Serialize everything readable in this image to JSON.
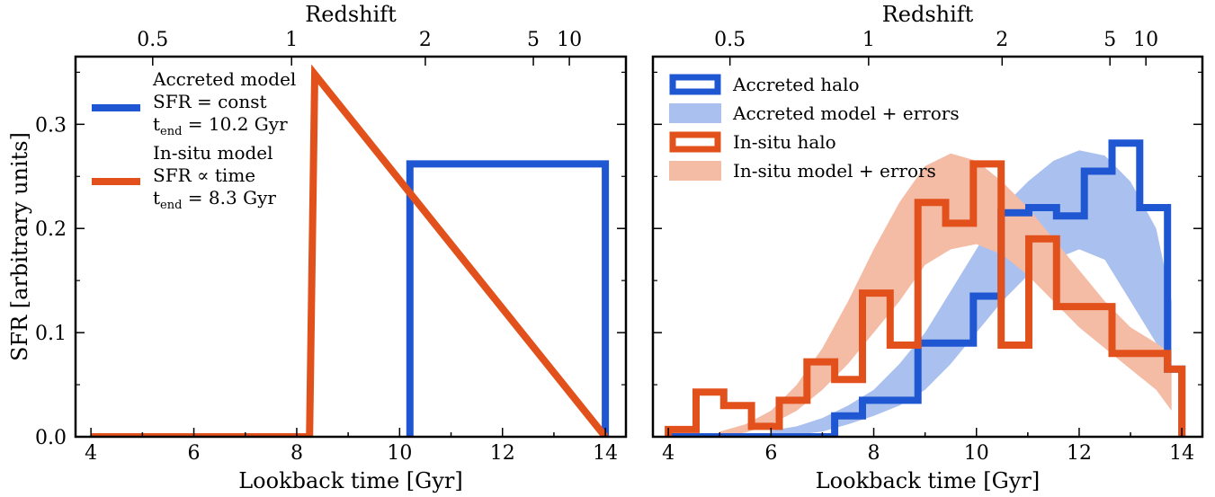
{
  "chart_data": [
    {
      "type": "line",
      "xlabel": "Lookback time [Gyr]",
      "ylabel": "SFR [arbitrary units]",
      "top_axis_label": "Redshift",
      "xlim": [
        3.7,
        14.4
      ],
      "ylim": [
        0.0,
        0.365
      ],
      "x_ticks": [
        4,
        6,
        8,
        10,
        12,
        14
      ],
      "y_ticks": [
        0.0,
        0.1,
        0.2,
        0.3
      ],
      "redshift_ticks": [
        {
          "label": "0.5",
          "t": 5.2
        },
        {
          "label": "1",
          "t": 7.9
        },
        {
          "label": "2",
          "t": 10.5
        },
        {
          "label": "5",
          "t": 12.6
        },
        {
          "label": "10",
          "t": 13.3
        }
      ],
      "legend_position": "top-left",
      "legend": [
        {
          "lines": [
            "Accreted model",
            "SFR = const"
          ],
          "tend_value": "10.2 Gyr",
          "color": "#1f56d2"
        },
        {
          "lines": [
            "In-situ model",
            "SFR ∝ time"
          ],
          "tend_value": "8.3 Gyr",
          "color": "#e2511b"
        }
      ],
      "series": [
        {
          "name": "Accreted model",
          "color": "#1f56d2",
          "x": [
            10.2,
            10.2,
            14.0,
            14.0
          ],
          "y": [
            0.0,
            0.262,
            0.262,
            0.0
          ]
        },
        {
          "name": "In-situ model",
          "color": "#e2511b",
          "x": [
            4.0,
            8.25,
            8.35,
            14.0
          ],
          "y": [
            0.0,
            0.0,
            0.348,
            0.0
          ]
        }
      ]
    },
    {
      "type": "step",
      "xlabel": "Lookback time [Gyr]",
      "top_axis_label": "Redshift",
      "xlim": [
        3.7,
        14.4
      ],
      "ylim": [
        0.0,
        0.365
      ],
      "x_ticks": [
        4,
        6,
        8,
        10,
        12,
        14
      ],
      "y_ticks": [
        0.0,
        0.1,
        0.2,
        0.3
      ],
      "redshift_ticks": [
        {
          "label": "0.5",
          "t": 5.2
        },
        {
          "label": "1",
          "t": 7.9
        },
        {
          "label": "2",
          "t": 10.5
        },
        {
          "label": "5",
          "t": 12.6
        },
        {
          "label": "10",
          "t": 13.3
        }
      ],
      "legend_position": "top-left",
      "legend": [
        {
          "label": "Accreted halo",
          "kind": "hist",
          "color": "#1f56d2"
        },
        {
          "label": "Accreted model + errors",
          "kind": "band",
          "color": "#aac0ee"
        },
        {
          "label": "In-situ halo",
          "kind": "hist",
          "color": "#e2511b"
        },
        {
          "label": "In-situ model + errors",
          "kind": "band",
          "color": "#f4bba5"
        }
      ],
      "bin_edges": [
        4.0,
        4.54,
        5.08,
        5.62,
        6.16,
        6.7,
        7.24,
        7.78,
        8.32,
        8.86,
        9.4,
        9.94,
        10.48,
        11.02,
        11.56,
        12.1,
        12.64,
        13.18,
        13.72,
        14.0
      ],
      "histograms": [
        {
          "name": "Accreted halo",
          "color": "#1f56d2",
          "values": [
            0.0,
            0.0,
            0.0,
            0.0,
            0.0,
            0.0,
            0.02,
            0.035,
            0.035,
            0.09,
            0.09,
            0.135,
            0.215,
            0.22,
            0.212,
            0.255,
            0.282,
            0.22,
            0.065
          ]
        },
        {
          "name": "In-situ halo",
          "color": "#e2511b",
          "values": [
            0.007,
            0.043,
            0.03,
            0.01,
            0.035,
            0.072,
            0.055,
            0.138,
            0.088,
            0.225,
            0.205,
            0.262,
            0.088,
            0.19,
            0.125,
            0.125,
            0.08,
            0.08,
            0.065
          ]
        }
      ],
      "bands": [
        {
          "name": "Accreted model + errors",
          "color": "#aac0ee",
          "x": [
            6.0,
            6.5,
            7.0,
            7.5,
            8.0,
            8.5,
            9.0,
            9.5,
            10.0,
            10.5,
            11.0,
            11.5,
            12.0,
            12.5,
            13.0,
            13.5,
            13.8
          ],
          "low": [
            0.0,
            0.002,
            0.005,
            0.012,
            0.02,
            0.03,
            0.045,
            0.07,
            0.1,
            0.13,
            0.155,
            0.17,
            0.18,
            0.17,
            0.13,
            0.09,
            0.06
          ],
          "high": [
            0.006,
            0.01,
            0.018,
            0.03,
            0.045,
            0.07,
            0.1,
            0.14,
            0.18,
            0.22,
            0.245,
            0.265,
            0.275,
            0.27,
            0.245,
            0.2,
            0.13
          ]
        },
        {
          "name": "In-situ model + errors",
          "color": "#f4bba5",
          "x": [
            5.0,
            5.5,
            6.0,
            6.5,
            7.0,
            7.5,
            8.0,
            8.5,
            9.0,
            9.5,
            10.0,
            10.5,
            11.0,
            11.5,
            12.0,
            12.5,
            13.0,
            13.5,
            13.8
          ],
          "low": [
            0.0,
            0.004,
            0.012,
            0.025,
            0.045,
            0.07,
            0.1,
            0.13,
            0.165,
            0.18,
            0.185,
            0.175,
            0.155,
            0.13,
            0.105,
            0.085,
            0.065,
            0.045,
            0.025
          ],
          "high": [
            0.005,
            0.012,
            0.025,
            0.05,
            0.085,
            0.13,
            0.18,
            0.225,
            0.26,
            0.272,
            0.265,
            0.245,
            0.22,
            0.19,
            0.16,
            0.13,
            0.105,
            0.09,
            0.08
          ]
        }
      ]
    }
  ]
}
